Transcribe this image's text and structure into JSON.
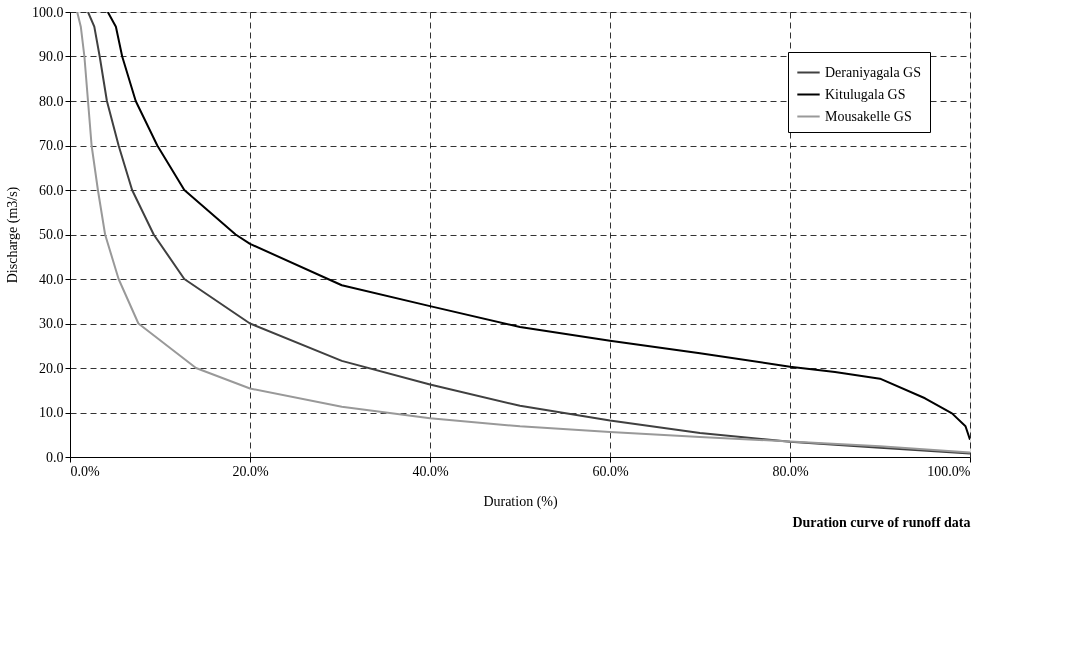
{
  "chart_data": {
    "type": "line",
    "title": "Duration curve of runoff data",
    "xlabel": "Duration (%)",
    "ylabel": "Discharge (m3/s)",
    "xlim": [
      0,
      100
    ],
    "ylim": [
      0,
      100
    ],
    "xticks": [
      {
        "value": 0,
        "label": "0.0%"
      },
      {
        "value": 20,
        "label": "20.0%"
      },
      {
        "value": 40,
        "label": "40.0%"
      },
      {
        "value": 60,
        "label": "60.0%"
      },
      {
        "value": 80,
        "label": "80.0%"
      },
      {
        "value": 100,
        "label": "100.0%"
      }
    ],
    "yticks": [
      {
        "value": 0,
        "label": "0.0"
      },
      {
        "value": 10,
        "label": "10.0"
      },
      {
        "value": 20,
        "label": "20.0"
      },
      {
        "value": 30,
        "label": "30.0"
      },
      {
        "value": 40,
        "label": "40.0"
      },
      {
        "value": 50,
        "label": "50.0"
      },
      {
        "value": 60,
        "label": "60.0"
      },
      {
        "value": 70,
        "label": "70.0"
      },
      {
        "value": 80,
        "label": "80.0"
      },
      {
        "value": 90,
        "label": "90.0"
      },
      {
        "value": 100,
        "label": "100.0"
      }
    ],
    "grid": true,
    "legend": "top right",
    "marker": "none",
    "line_style": "solid",
    "series": [
      {
        "name": "Deraniyagala GS",
        "color": "#404040",
        "x": [
          2.0,
          2.7,
          3.3,
          4.1,
          5.4,
          6.9,
          9.3,
          12.7,
          20,
          30.2,
          40,
          50,
          60,
          70,
          80,
          90,
          100
        ],
        "values": [
          100,
          96.7,
          90,
          80,
          70,
          60,
          50,
          40,
          30,
          21.6,
          16.3,
          11.5,
          8.2,
          5.4,
          3.4,
          2.1,
          0.8
        ]
      },
      {
        "name": "Kitulugala GS",
        "color": "#000000",
        "x": [
          4.2,
          5.1,
          5.8,
          7.3,
          9.7,
          12.7,
          18.4,
          20,
          30.2,
          40,
          50,
          60,
          70,
          80,
          85,
          90,
          95,
          98,
          99.5,
          100
        ],
        "values": [
          100,
          96.7,
          90,
          80,
          70,
          60,
          50,
          47.9,
          38.6,
          33.9,
          29.2,
          26.1,
          23.3,
          20.3,
          19.1,
          17.6,
          13.2,
          9.8,
          6.9,
          3.9
        ]
      },
      {
        "name": "Mousakelle GS",
        "color": "#999999",
        "x": [
          0.8,
          1.2,
          1.6,
          2.0,
          2.4,
          3.1,
          3.9,
          5.4,
          7.6,
          14.0,
          20,
          30.2,
          40,
          50,
          60,
          70,
          80,
          90,
          100
        ],
        "values": [
          100,
          96.7,
          90,
          80,
          70,
          60,
          50,
          40,
          30,
          20,
          15.4,
          11.3,
          8.7,
          6.9,
          5.6,
          4.5,
          3.5,
          2.4,
          1.0
        ]
      }
    ]
  }
}
